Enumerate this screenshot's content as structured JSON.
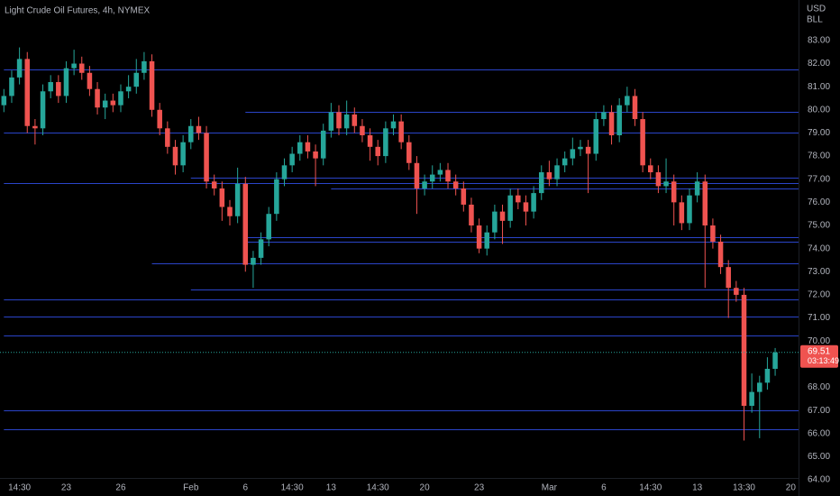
{
  "chart_data": {
    "type": "candlestick",
    "title": "Light Crude Oil Futures, 4h, NYMEX",
    "currency": "USD",
    "unit": "BLL",
    "up_color": "#26a69a",
    "down_color": "#ef5350",
    "level_color": "#2a44c8",
    "grid": false,
    "ylim": [
      63.3,
      84.75
    ],
    "yticks": [
      {
        "value": 83,
        "label": "83.00"
      },
      {
        "value": 82,
        "label": "82.00"
      },
      {
        "value": 81,
        "label": "81.00"
      },
      {
        "value": 80,
        "label": "80.00"
      },
      {
        "value": 79,
        "label": "79.00"
      },
      {
        "value": 78,
        "label": "78.00"
      },
      {
        "value": 77,
        "label": "77.00"
      },
      {
        "value": 76,
        "label": "76.00"
      },
      {
        "value": 75,
        "label": "75.00"
      },
      {
        "value": 74,
        "label": "74.00"
      },
      {
        "value": 73,
        "label": "73.00"
      },
      {
        "value": 72,
        "label": "72.00"
      },
      {
        "value": 71,
        "label": "71.00"
      },
      {
        "value": 70,
        "label": "70.00"
      },
      {
        "value": 69,
        "label": "69.00"
      },
      {
        "value": 68,
        "label": "68.00"
      },
      {
        "value": 67,
        "label": "67.00"
      },
      {
        "value": 66,
        "label": "66.00"
      },
      {
        "value": 65,
        "label": "65.00"
      },
      {
        "value": 64,
        "label": "64.00"
      }
    ],
    "xlim": [
      -0.5,
      102
    ],
    "xticks": [
      {
        "value": 2,
        "label": "14:30"
      },
      {
        "value": 8,
        "label": "23"
      },
      {
        "value": 15,
        "label": "26"
      },
      {
        "value": 24,
        "label": "Feb"
      },
      {
        "value": 31,
        "label": "6"
      },
      {
        "value": 37,
        "label": "14:30"
      },
      {
        "value": 42,
        "label": "13"
      },
      {
        "value": 48,
        "label": "14:30"
      },
      {
        "value": 54,
        "label": "20"
      },
      {
        "value": 61,
        "label": "23"
      },
      {
        "value": 70,
        "label": "Mar"
      },
      {
        "value": 77,
        "label": "6"
      },
      {
        "value": 83,
        "label": "14:30"
      },
      {
        "value": 89,
        "label": "13"
      },
      {
        "value": 95,
        "label": "13:30"
      },
      {
        "value": 101,
        "label": "20"
      }
    ],
    "open": [
      80.2,
      80.6,
      81.4,
      82.2,
      79.3,
      79.2,
      80.8,
      81.2,
      80.6,
      81.8,
      82.0,
      81.6,
      80.9,
      80.1,
      80.4,
      80.2,
      80.8,
      81.0,
      81.6,
      82.1,
      80.0,
      79.2,
      78.4,
      77.6,
      78.6,
      79.3,
      79.0,
      76.9,
      76.6,
      75.8,
      75.4,
      76.8,
      73.3,
      73.6,
      74.4,
      75.5,
      77.0,
      77.6,
      78.1,
      78.6,
      78.2,
      77.9,
      79.1,
      79.9,
      79.2,
      79.8,
      79.3,
      78.9,
      78.4,
      78.0,
      79.2,
      79.5,
      78.6,
      77.7,
      76.6,
      76.9,
      77.2,
      77.4,
      76.9,
      76.6,
      75.9,
      75.0,
      74.0,
      74.7,
      75.6,
      75.2,
      76.3,
      76.0,
      75.6,
      76.4,
      77.3,
      77.0,
      77.6,
      77.9,
      78.3,
      78.4,
      78.1,
      79.6,
      79.9,
      78.9,
      80.2,
      80.6,
      79.6,
      77.6,
      77.3,
      76.7,
      76.9,
      76.0,
      75.1,
      76.3,
      76.9,
      75.0,
      74.3,
      73.2,
      72.3,
      72.0,
      67.2,
      67.8,
      68.2,
      68.8
    ],
    "high": [
      80.9,
      81.7,
      82.7,
      82.5,
      79.6,
      81.1,
      81.5,
      81.5,
      82.1,
      82.6,
      82.3,
      81.9,
      81.2,
      80.7,
      80.7,
      81.1,
      81.5,
      82.2,
      82.5,
      82.4,
      80.3,
      79.5,
      78.7,
      78.9,
      79.6,
      79.7,
      79.3,
      77.2,
      76.9,
      76.1,
      77.5,
      77.1,
      73.9,
      74.7,
      75.8,
      77.3,
      77.9,
      78.4,
      78.9,
      78.9,
      78.5,
      79.4,
      80.3,
      80.2,
      80.4,
      80.1,
      79.6,
      79.2,
      78.7,
      79.5,
      79.8,
      79.8,
      78.9,
      78.0,
      77.2,
      77.6,
      77.7,
      77.7,
      77.2,
      76.9,
      76.2,
      75.3,
      75.0,
      75.9,
      75.9,
      76.6,
      76.6,
      76.3,
      76.7,
      77.6,
      77.8,
      77.9,
      78.2,
      78.8,
      78.7,
      78.7,
      79.9,
      80.2,
      80.2,
      80.5,
      81.0,
      80.9,
      79.9,
      77.9,
      77.6,
      77.9,
      77.2,
      76.3,
      76.6,
      77.3,
      77.2,
      75.3,
      74.6,
      73.5,
      72.6,
      72.3,
      68.6,
      68.5,
      69.3,
      69.7
    ],
    "low": [
      79.9,
      80.3,
      81.1,
      79.0,
      78.5,
      78.9,
      80.5,
      80.3,
      80.3,
      81.5,
      81.3,
      80.6,
      79.8,
      79.6,
      79.9,
      79.9,
      80.5,
      80.7,
      81.3,
      79.7,
      78.9,
      78.1,
      77.2,
      77.3,
      78.3,
      78.7,
      76.6,
      76.3,
      75.2,
      75.0,
      75.1,
      73.0,
      72.3,
      73.3,
      74.1,
      75.2,
      76.7,
      77.3,
      77.8,
      77.9,
      76.7,
      77.6,
      78.8,
      78.9,
      78.9,
      79.0,
      78.6,
      77.8,
      77.6,
      77.7,
      78.9,
      78.3,
      77.4,
      75.5,
      76.3,
      76.6,
      76.9,
      76.6,
      76.3,
      75.6,
      74.7,
      73.8,
      73.7,
      74.4,
      74.2,
      74.9,
      75.7,
      75.0,
      75.3,
      76.1,
      76.7,
      76.7,
      77.3,
      77.6,
      78.0,
      76.4,
      77.8,
      79.3,
      78.5,
      78.6,
      79.9,
      79.3,
      77.3,
      77.0,
      76.4,
      76.4,
      75.0,
      74.8,
      74.8,
      76.0,
      72.3,
      74.0,
      72.9,
      71.0,
      71.7,
      65.7,
      66.9,
      65.8,
      67.9,
      68.5
    ],
    "close": [
      80.6,
      81.4,
      82.2,
      79.3,
      79.2,
      80.8,
      81.2,
      80.6,
      81.8,
      82.0,
      81.6,
      80.9,
      80.1,
      80.4,
      80.2,
      80.8,
      81.0,
      81.6,
      82.1,
      80.0,
      79.2,
      78.4,
      77.6,
      78.6,
      79.3,
      79.0,
      76.9,
      76.6,
      75.8,
      75.4,
      76.8,
      73.3,
      73.6,
      74.4,
      75.5,
      77.0,
      77.6,
      78.1,
      78.6,
      78.2,
      77.9,
      79.1,
      79.9,
      79.2,
      79.8,
      79.3,
      78.9,
      78.4,
      78.0,
      79.2,
      79.5,
      78.6,
      77.7,
      76.6,
      76.9,
      77.2,
      77.4,
      76.9,
      76.6,
      75.9,
      75.0,
      74.0,
      74.7,
      75.6,
      75.2,
      76.3,
      76.0,
      75.6,
      76.4,
      77.3,
      77.0,
      77.6,
      77.9,
      78.3,
      78.4,
      78.1,
      79.6,
      79.9,
      78.9,
      80.2,
      80.6,
      79.6,
      77.6,
      77.3,
      76.7,
      76.9,
      76.0,
      75.1,
      76.3,
      76.9,
      75.0,
      74.3,
      73.2,
      72.3,
      72.0,
      67.2,
      67.8,
      68.2,
      68.8,
      69.51
    ],
    "levels": [
      {
        "value": 81.75,
        "start": 0
      },
      {
        "value": 79.9,
        "start": 31
      },
      {
        "value": 79.0,
        "start": 0
      },
      {
        "value": 77.05,
        "start": 24
      },
      {
        "value": 76.85,
        "start": 0
      },
      {
        "value": 76.6,
        "start": 42
      },
      {
        "value": 74.5,
        "start": 31
      },
      {
        "value": 74.3,
        "start": 31
      },
      {
        "value": 73.35,
        "start": 19
      },
      {
        "value": 72.25,
        "start": 24
      },
      {
        "value": 71.8,
        "start": 0
      },
      {
        "value": 71.05,
        "start": 0
      },
      {
        "value": 70.25,
        "start": 0
      },
      {
        "value": 67.0,
        "start": 0
      },
      {
        "value": 66.2,
        "start": 0
      }
    ],
    "last_price": 69.51,
    "countdown": "03:13:49"
  }
}
